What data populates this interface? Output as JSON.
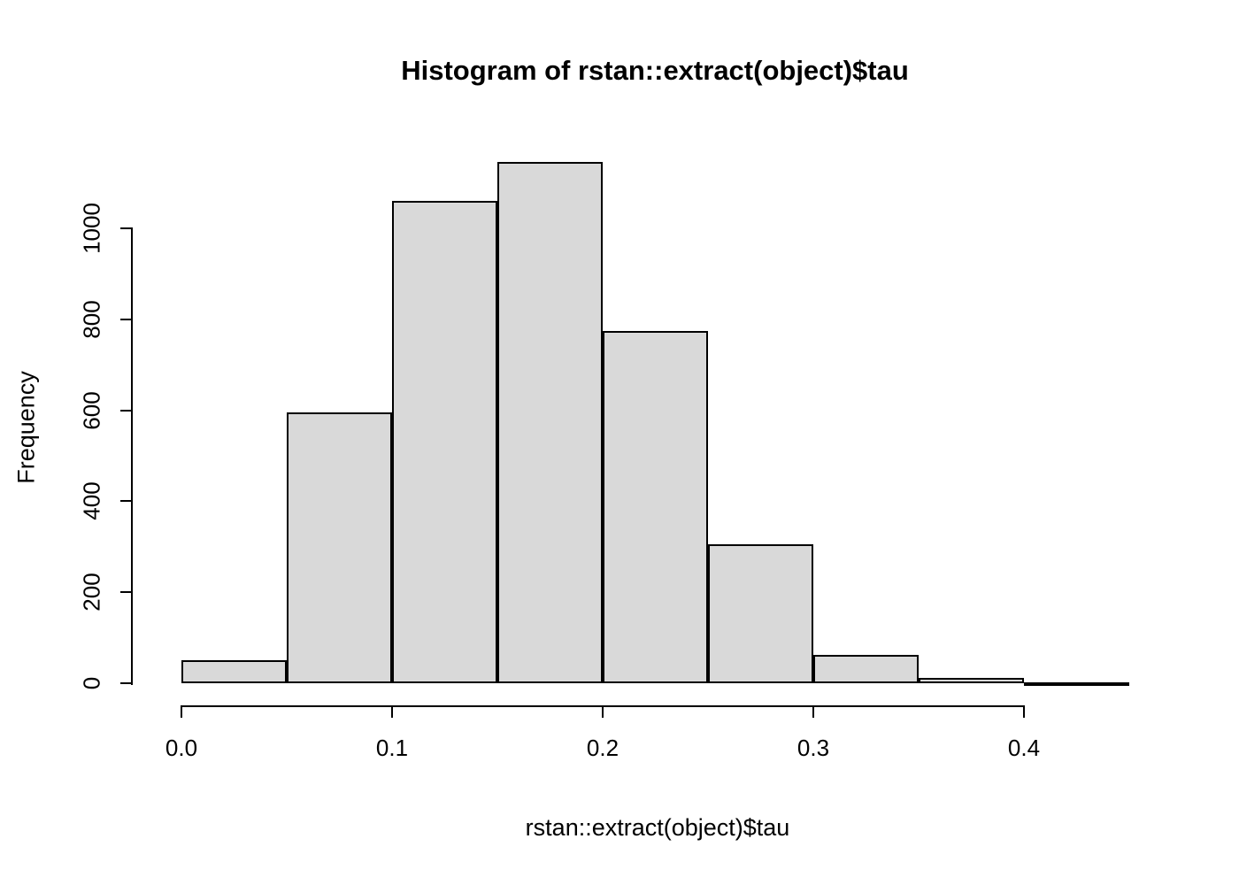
{
  "page": {
    "background": "#ffffff"
  },
  "chart_data": {
    "type": "bar",
    "title": "Histogram of rstan::extract(object)$tau",
    "xlabel": "rstan::extract(object)$tau",
    "ylabel": "Frequency",
    "bin_width": 0.05,
    "bin_edges": [
      0,
      0.05,
      0.1,
      0.15,
      0.2,
      0.25,
      0.3,
      0.35,
      0.4,
      0.45
    ],
    "values": [
      50,
      595,
      1060,
      1145,
      775,
      305,
      62,
      12,
      2
    ],
    "x_ticks": {
      "values": [
        0,
        0.1,
        0.2,
        0.3,
        0.4
      ],
      "labels": [
        "0.0",
        "0.1",
        "0.2",
        "0.3",
        "0.4"
      ]
    },
    "y_ticks": {
      "values": [
        0,
        200,
        400,
        600,
        800,
        1000
      ],
      "labels": [
        "0",
        "200",
        "400",
        "600",
        "800",
        "1000"
      ]
    },
    "xlim": [
      0,
      0.45
    ],
    "ylim": [
      0,
      1150
    ],
    "grid": false,
    "legend": "none",
    "bar_fill": "#d9d9d9",
    "bar_border": "#000000",
    "axis_color": "#000000"
  }
}
